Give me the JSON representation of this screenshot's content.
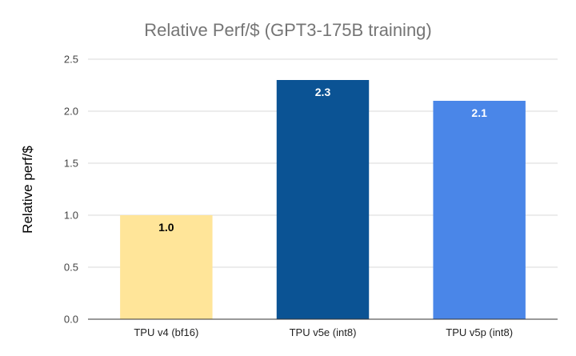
{
  "chart_data": {
    "type": "bar",
    "title": "Relative Perf/$ (GPT3-175B training)",
    "xlabel": "",
    "ylabel": "Relative perf/$",
    "categories": [
      "TPU v4 (bf16)",
      "TPU v5e (int8)",
      "TPU v5p (int8)"
    ],
    "values": [
      1.0,
      2.3,
      2.1
    ],
    "data_labels": [
      "1.0",
      "2.3",
      "2.1"
    ],
    "bar_colors": [
      "#FFE599",
      "#0B5394",
      "#4A86E8"
    ],
    "data_label_colors": [
      "#000000",
      "#FFFFFF",
      "#FFFFFF"
    ],
    "ylim": [
      0,
      2.5
    ],
    "yticks": [
      "0.0",
      "0.5",
      "1.0",
      "1.5",
      "2.0",
      "2.5"
    ],
    "grid": true,
    "legend": "none"
  }
}
